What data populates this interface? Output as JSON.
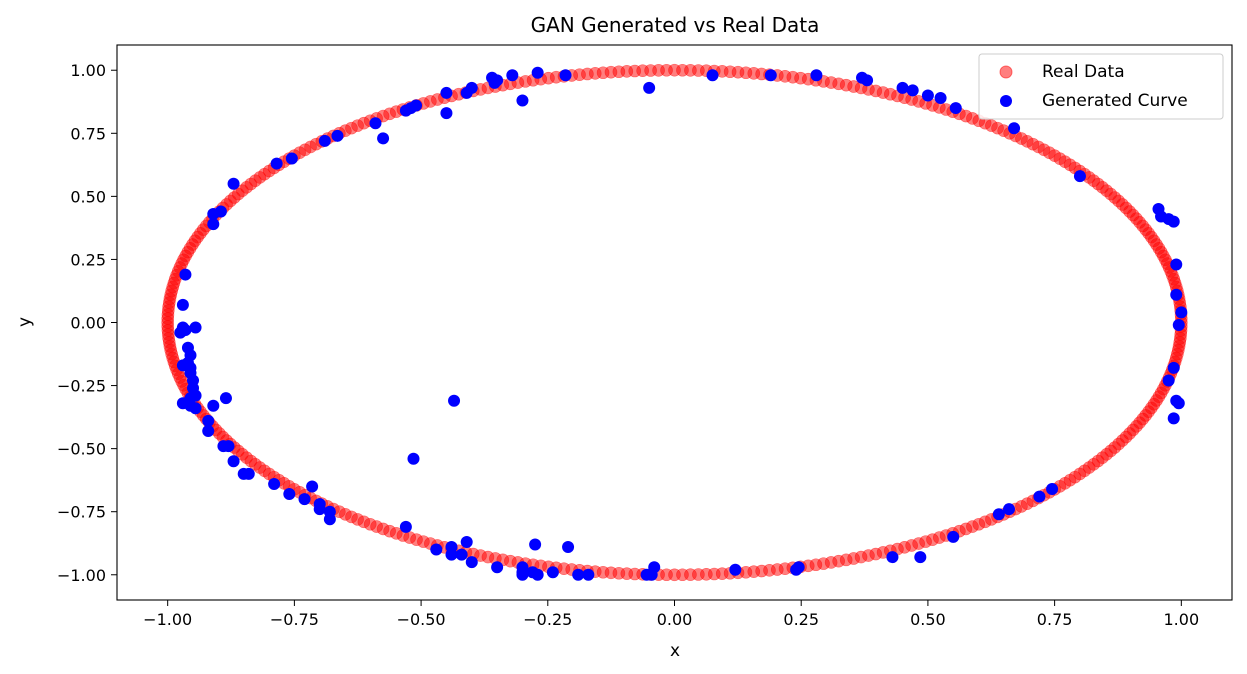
{
  "chart_data": {
    "type": "scatter",
    "title": "GAN Generated vs Real Data",
    "xlabel": "x",
    "ylabel": "y",
    "xlim": [
      -1.1,
      1.1
    ],
    "ylim": [
      -1.1,
      1.1
    ],
    "xticks": [
      -1.0,
      -0.75,
      -0.5,
      -0.25,
      0.0,
      0.25,
      0.5,
      0.75,
      1.0
    ],
    "xtick_labels": [
      "−1.00",
      "−0.75",
      "−0.50",
      "−0.25",
      "0.00",
      "0.25",
      "0.50",
      "0.75",
      "1.00"
    ],
    "yticks": [
      1.0,
      0.75,
      0.5,
      0.25,
      0.0,
      -0.25,
      -0.5,
      -0.75,
      -1.0
    ],
    "ytick_labels": [
      "1.00",
      "0.75",
      "0.50",
      "0.25",
      "0.00",
      "−0.25",
      "−0.50",
      "−0.75",
      "−1.00"
    ],
    "grid": false,
    "legend_position": "top-right",
    "series": [
      {
        "name": "Real Data",
        "color": "#ff0000",
        "alpha": 0.5,
        "shape": "unit circle",
        "count": 400
      },
      {
        "name": "Generated Curve",
        "color": "#0000ff",
        "points": [
          [
            -0.97,
            0.07
          ],
          [
            -0.965,
            0.19
          ],
          [
            -0.97,
            -0.02
          ],
          [
            -0.975,
            -0.04
          ],
          [
            -0.965,
            -0.03
          ],
          [
            -0.945,
            -0.02
          ],
          [
            -0.96,
            -0.1
          ],
          [
            -0.955,
            -0.13
          ],
          [
            -0.96,
            -0.16
          ],
          [
            -0.97,
            -0.17
          ],
          [
            -0.955,
            -0.18
          ],
          [
            -0.955,
            -0.2
          ],
          [
            -0.95,
            -0.23
          ],
          [
            -0.95,
            -0.26
          ],
          [
            -0.945,
            -0.29
          ],
          [
            -0.955,
            -0.3
          ],
          [
            -0.97,
            -0.32
          ],
          [
            -0.955,
            -0.33
          ],
          [
            -0.945,
            -0.34
          ],
          [
            -0.91,
            -0.33
          ],
          [
            -0.885,
            -0.3
          ],
          [
            -0.92,
            -0.39
          ],
          [
            -0.92,
            -0.43
          ],
          [
            -0.89,
            -0.49
          ],
          [
            -0.88,
            -0.49
          ],
          [
            -0.87,
            -0.55
          ],
          [
            -0.85,
            -0.6
          ],
          [
            -0.84,
            -0.6
          ],
          [
            -0.79,
            -0.64
          ],
          [
            -0.76,
            -0.68
          ],
          [
            -0.73,
            -0.7
          ],
          [
            -0.715,
            -0.65
          ],
          [
            -0.7,
            -0.72
          ],
          [
            -0.7,
            -0.74
          ],
          [
            -0.68,
            -0.78
          ],
          [
            -0.68,
            -0.75
          ],
          [
            -0.53,
            -0.81
          ],
          [
            -0.47,
            -0.9
          ],
          [
            -0.44,
            -0.89
          ],
          [
            -0.44,
            -0.92
          ],
          [
            -0.42,
            -0.92
          ],
          [
            -0.41,
            -0.87
          ],
          [
            -0.4,
            -0.95
          ],
          [
            -0.35,
            -0.97
          ],
          [
            -0.3,
            -0.97
          ],
          [
            -0.3,
            -0.99
          ],
          [
            -0.3,
            -1.0
          ],
          [
            -0.28,
            -0.99
          ],
          [
            -0.27,
            -1.0
          ],
          [
            -0.275,
            -0.88
          ],
          [
            -0.24,
            -0.99
          ],
          [
            -0.21,
            -0.89
          ],
          [
            -0.19,
            -1.0
          ],
          [
            -0.17,
            -1.0
          ],
          [
            -0.055,
            -1.0
          ],
          [
            -0.045,
            -1.0
          ],
          [
            -0.04,
            -0.97
          ],
          [
            0.12,
            -0.98
          ],
          [
            0.245,
            -0.97
          ],
          [
            0.24,
            -0.98
          ],
          [
            0.43,
            -0.93
          ],
          [
            0.485,
            -0.93
          ],
          [
            0.55,
            -0.85
          ],
          [
            0.64,
            -0.76
          ],
          [
            0.66,
            -0.74
          ],
          [
            0.72,
            -0.69
          ],
          [
            0.745,
            -0.66
          ],
          [
            0.975,
            -0.23
          ],
          [
            0.985,
            -0.18
          ],
          [
            0.985,
            -0.38
          ],
          [
            0.99,
            -0.31
          ],
          [
            0.995,
            -0.32
          ],
          [
            0.995,
            -0.01
          ],
          [
            1.0,
            0.04
          ],
          [
            0.99,
            0.11
          ],
          [
            0.99,
            0.23
          ],
          [
            0.985,
            0.4
          ],
          [
            0.975,
            0.41
          ],
          [
            0.96,
            0.42
          ],
          [
            0.955,
            0.45
          ],
          [
            0.8,
            0.58
          ],
          [
            0.67,
            0.77
          ],
          [
            0.555,
            0.85
          ],
          [
            0.525,
            0.89
          ],
          [
            0.5,
            0.9
          ],
          [
            0.47,
            0.92
          ],
          [
            0.45,
            0.93
          ],
          [
            0.38,
            0.96
          ],
          [
            0.37,
            0.97
          ],
          [
            0.28,
            0.98
          ],
          [
            0.19,
            0.98
          ],
          [
            0.075,
            0.98
          ],
          [
            -0.05,
            0.93
          ],
          [
            -0.215,
            0.98
          ],
          [
            -0.27,
            0.99
          ],
          [
            -0.3,
            0.88
          ],
          [
            -0.32,
            0.98
          ],
          [
            -0.355,
            0.95
          ],
          [
            -0.36,
            0.97
          ],
          [
            -0.35,
            0.96
          ],
          [
            -0.4,
            0.93
          ],
          [
            -0.41,
            0.91
          ],
          [
            -0.45,
            0.91
          ],
          [
            -0.45,
            0.83
          ],
          [
            -0.51,
            0.86
          ],
          [
            -0.52,
            0.85
          ],
          [
            -0.53,
            0.84
          ],
          [
            -0.575,
            0.73
          ],
          [
            -0.59,
            0.79
          ],
          [
            -0.665,
            0.74
          ],
          [
            -0.69,
            0.72
          ],
          [
            -0.755,
            0.65
          ],
          [
            -0.785,
            0.63
          ],
          [
            -0.87,
            0.55
          ],
          [
            -0.895,
            0.44
          ],
          [
            -0.91,
            0.43
          ],
          [
            -0.91,
            0.39
          ],
          [
            -0.435,
            -0.31
          ],
          [
            -0.515,
            -0.54
          ]
        ]
      }
    ]
  }
}
